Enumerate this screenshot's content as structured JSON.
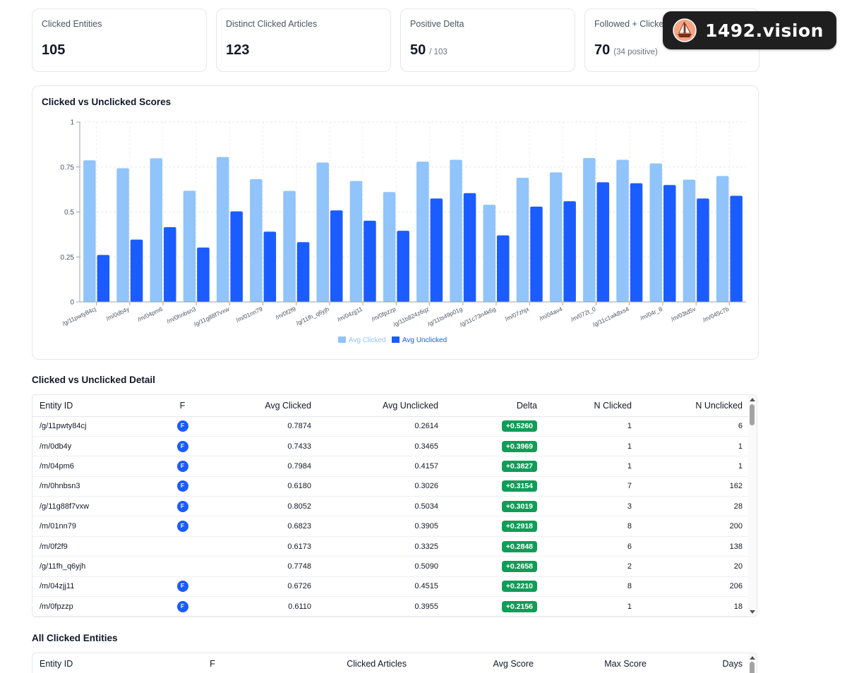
{
  "stats": [
    {
      "label": "Clicked Entities",
      "value": "105",
      "sub": ""
    },
    {
      "label": "Distinct Clicked Articles",
      "value": "123",
      "sub": ""
    },
    {
      "label": "Positive Delta",
      "value": "50",
      "sub": "/ 103"
    },
    {
      "label": "Followed + Clicked",
      "value": "70",
      "sub": "(34 positive)"
    }
  ],
  "badge": {
    "text": "1492.vision"
  },
  "chart": {
    "title": "Clicked vs Unclicked Scores"
  },
  "chart_data": {
    "type": "bar",
    "title": "Clicked vs Unclicked Scores",
    "categories": [
      "/g/11pwty84cj",
      "/m/0db4y",
      "/m/04pm6",
      "/m/0hnbsn3",
      "/g/11g88f7vxw",
      "/m/01nn79",
      "/m/0f2f9",
      "/g/11fh_q6yjh",
      "/m/04zjj11",
      "/m/0fpzzp",
      "/g/11b824z6qz",
      "/g/11ts49p01g",
      "/g/11c73n4k6g",
      "/m/07zhjx",
      "/m/04av4",
      "/m/072t_0",
      "/g/11c1wk8xs4",
      "/m/04r_8",
      "/m/03td5v",
      "/m/045c7b"
    ],
    "series": [
      {
        "name": "Avg Clicked",
        "color": "#90c4fa",
        "values": [
          0.7874,
          0.7433,
          0.7984,
          0.618,
          0.8052,
          0.6823,
          0.6173,
          0.7748,
          0.6726,
          0.611,
          0.78,
          0.79,
          0.54,
          0.69,
          0.72,
          0.8,
          0.79,
          0.77,
          0.68,
          0.7
        ]
      },
      {
        "name": "Avg Unclicked",
        "color": "#1a5cff",
        "values": [
          0.2614,
          0.3465,
          0.4157,
          0.3026,
          0.5034,
          0.3905,
          0.3325,
          0.509,
          0.4515,
          0.3955,
          0.575,
          0.605,
          0.37,
          0.53,
          0.56,
          0.665,
          0.66,
          0.65,
          0.575,
          0.59
        ]
      }
    ],
    "yticks": [
      "0",
      "0.25",
      "0.5",
      "0.75",
      "1"
    ],
    "ylim": [
      0,
      1
    ],
    "grid": true,
    "legend": "bottom-center"
  },
  "detail": {
    "title": "Clicked vs Unclicked Detail",
    "headers": {
      "entity": "Entity ID",
      "f": "F",
      "avg_clicked": "Avg Clicked",
      "avg_unclicked": "Avg Unclicked",
      "delta": "Delta",
      "n_clicked": "N Clicked",
      "n_unclicked": "N Unclicked"
    },
    "f_label": "F",
    "rows": [
      {
        "entity": "/g/11pwty84cj",
        "f": true,
        "avg_clicked": "0.7874",
        "avg_unclicked": "0.2614",
        "delta": "+0.5260",
        "n_clicked": "1",
        "n_unclicked": "6"
      },
      {
        "entity": "/m/0db4y",
        "f": true,
        "avg_clicked": "0.7433",
        "avg_unclicked": "0.3465",
        "delta": "+0.3969",
        "n_clicked": "1",
        "n_unclicked": "1"
      },
      {
        "entity": "/m/04pm6",
        "f": true,
        "avg_clicked": "0.7984",
        "avg_unclicked": "0.4157",
        "delta": "+0.3827",
        "n_clicked": "1",
        "n_unclicked": "1"
      },
      {
        "entity": "/m/0hnbsn3",
        "f": true,
        "avg_clicked": "0.6180",
        "avg_unclicked": "0.3026",
        "delta": "+0.3154",
        "n_clicked": "7",
        "n_unclicked": "162"
      },
      {
        "entity": "/g/11g88f7vxw",
        "f": true,
        "avg_clicked": "0.8052",
        "avg_unclicked": "0.5034",
        "delta": "+0.3019",
        "n_clicked": "3",
        "n_unclicked": "28"
      },
      {
        "entity": "/m/01nn79",
        "f": true,
        "avg_clicked": "0.6823",
        "avg_unclicked": "0.3905",
        "delta": "+0.2918",
        "n_clicked": "8",
        "n_unclicked": "200"
      },
      {
        "entity": "/m/0f2f9",
        "f": false,
        "avg_clicked": "0.6173",
        "avg_unclicked": "0.3325",
        "delta": "+0.2848",
        "n_clicked": "6",
        "n_unclicked": "138"
      },
      {
        "entity": "/g/11fh_q6yjh",
        "f": false,
        "avg_clicked": "0.7748",
        "avg_unclicked": "0.5090",
        "delta": "+0.2658",
        "n_clicked": "2",
        "n_unclicked": "20"
      },
      {
        "entity": "/m/04zjj11",
        "f": true,
        "avg_clicked": "0.6726",
        "avg_unclicked": "0.4515",
        "delta": "+0.2210",
        "n_clicked": "8",
        "n_unclicked": "206"
      },
      {
        "entity": "/m/0fpzzp",
        "f": true,
        "avg_clicked": "0.6110",
        "avg_unclicked": "0.3955",
        "delta": "+0.2156",
        "n_clicked": "1",
        "n_unclicked": "18"
      }
    ]
  },
  "all_clicked": {
    "title": "All Clicked Entities",
    "headers": {
      "entity": "Entity ID",
      "f": "F",
      "clicked_articles": "Clicked Articles",
      "avg_score": "Avg Score",
      "max_score": "Max Score",
      "days": "Days"
    }
  }
}
